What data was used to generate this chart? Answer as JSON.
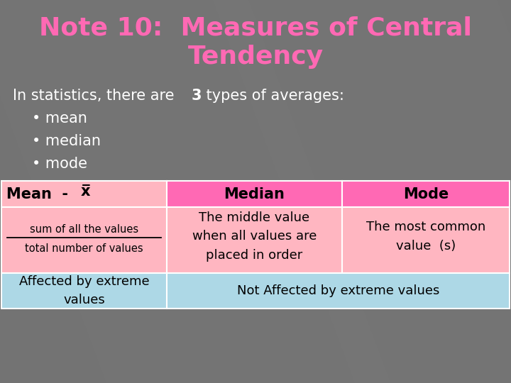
{
  "title_line1": "Note 10:  Measures of Central",
  "title_line2": "Tendency",
  "title_color": "#FF69B4",
  "bg_color": "#737373",
  "intro_text_parts": [
    "In statistics, there are ",
    "3",
    " types of averages:"
  ],
  "bullets": [
    "• mean",
    "• median",
    "• mode"
  ],
  "col1_header": "Mean  -  x̅",
  "col2_header": "Median",
  "col3_header": "Mode",
  "col1_body_top": "sum of all the values",
  "col1_body_bot": "total number of values",
  "col2_body": "The middle value\nwhen all values are\nplaced in order",
  "col3_body": "The most common\nvalue  (s)",
  "bottom_col1": "Affected by extreme\nvalues",
  "bottom_col2": "Not Affected by extreme values",
  "color_pink_light": "#FFB6C1",
  "color_pink_hot": "#FF69B4",
  "color_blue_light": "#ADD8E6",
  "color_black": "#000000",
  "color_white": "#FFFFFF"
}
